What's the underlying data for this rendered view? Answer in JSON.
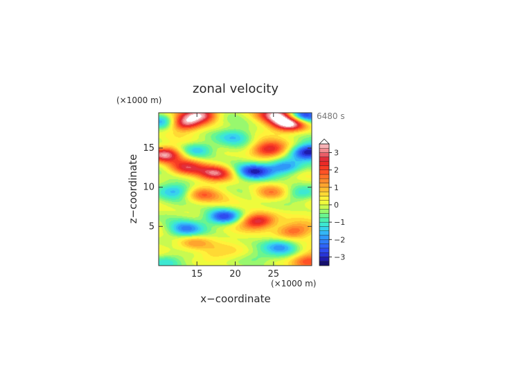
{
  "chart_data": {
    "type": "heatmap",
    "title": "zonal velocity",
    "time_label": "6480 s",
    "xlabel": "x−coordinate",
    "ylabel": "z−coordinate",
    "x_unit": "(×1000 m)",
    "y_unit": "(×1000 m)",
    "xlim": [
      10,
      30
    ],
    "ylim": [
      0,
      19.5
    ],
    "x_ticks": [
      15,
      20,
      25
    ],
    "x_tick_labels": [
      "15",
      "20",
      "25"
    ],
    "y_ticks": [
      5,
      10,
      15
    ],
    "y_tick_labels": [
      "5",
      "10",
      "15"
    ],
    "colorbar": {
      "levels": [
        -3.5,
        -3.25,
        -3,
        -2.75,
        -2.5,
        -2.25,
        -2,
        -1.75,
        -1.5,
        -1.25,
        -1,
        -0.75,
        -0.5,
        -0.25,
        0,
        0.25,
        0.5,
        0.75,
        1,
        1.25,
        1.5,
        1.75,
        2,
        2.25,
        2.5,
        2.75,
        3,
        3.25,
        3.5
      ],
      "colors": [
        "#16106e",
        "#1f1cab",
        "#2734d6",
        "#2e4cf0",
        "#2f63f7",
        "#2f7cf8",
        "#2f98f9",
        "#33b6f7",
        "#38d3ec",
        "#3de8d2",
        "#4cf0b0",
        "#6af58f",
        "#98f86e",
        "#c8fa50",
        "#eefb3c",
        "#fff23a",
        "#ffd934",
        "#ffbe30",
        "#ffa42e",
        "#ff8a2c",
        "#ff6f28",
        "#ff5226",
        "#f73c24",
        "#ea2a26",
        "#e22e3a",
        "#ea5e68",
        "#f28e92",
        "#f7b2b5"
      ],
      "tick_values": [
        3,
        2,
        1,
        0,
        -1,
        -2,
        -3
      ],
      "tick_labels": [
        "3",
        "2",
        "1",
        "0",
        "−1",
        "−2",
        "−3"
      ],
      "extend": "max"
    },
    "features": [
      {
        "x": 12.8,
        "z": 18.2,
        "value": 4.5
      },
      {
        "x": 27.2,
        "z": 18.2,
        "value": 4.5
      },
      {
        "x": 15.5,
        "z": 19.3,
        "value": 3.2
      },
      {
        "x": 25.5,
        "z": 19.3,
        "value": 3.2
      },
      {
        "x": 11.5,
        "z": 18.3,
        "value": -3.5
      },
      {
        "x": 28.5,
        "z": 19.0,
        "value": -3.5
      },
      {
        "x": 10.8,
        "z": 14.2,
        "value": 3.4
      },
      {
        "x": 29.5,
        "z": 14.5,
        "value": -3.4
      },
      {
        "x": 15.0,
        "z": 14.8,
        "value": -1.8
      },
      {
        "x": 24.3,
        "z": 14.8,
        "value": 2.6
      },
      {
        "x": 13.5,
        "z": 12.5,
        "value": 2.3
      },
      {
        "x": 17.5,
        "z": 11.8,
        "value": 2.6
      },
      {
        "x": 22.5,
        "z": 12.0,
        "value": -2.6
      },
      {
        "x": 26.5,
        "z": 12.6,
        "value": -2.4
      },
      {
        "x": 15.5,
        "z": 9.0,
        "value": 1.5
      },
      {
        "x": 24.5,
        "z": 9.2,
        "value": 1.7
      },
      {
        "x": 12.5,
        "z": 9.6,
        "value": -1.5
      },
      {
        "x": 28.5,
        "z": 9.2,
        "value": -1.6
      },
      {
        "x": 18.5,
        "z": 6.2,
        "value": -3.0
      },
      {
        "x": 23.0,
        "z": 5.7,
        "value": 3.1
      },
      {
        "x": 13.5,
        "z": 4.6,
        "value": -1.8
      },
      {
        "x": 27.5,
        "z": 4.4,
        "value": 2.0
      },
      {
        "x": 14.5,
        "z": 2.8,
        "value": 1.4
      },
      {
        "x": 26.0,
        "z": 2.4,
        "value": -1.5
      },
      {
        "x": 17.0,
        "z": 1.3,
        "value": 0.9
      },
      {
        "x": 22.5,
        "z": 1.0,
        "value": -0.9
      },
      {
        "x": 29.5,
        "z": 0.6,
        "value": 2.2
      },
      {
        "x": 11.0,
        "z": 0.5,
        "value": -1.4
      },
      {
        "x": 20.0,
        "z": 16.5,
        "value": -1.2
      }
    ]
  }
}
